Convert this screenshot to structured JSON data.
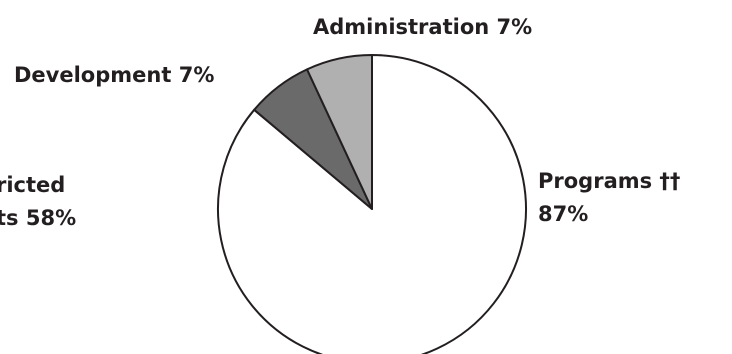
{
  "chart_data": {
    "type": "pie",
    "slices": [
      {
        "label": "Programs ††",
        "value": 87,
        "value_text": "87%",
        "color": "#ffffff"
      },
      {
        "label": "Development",
        "value": 7,
        "value_text": "7%",
        "color": "#6a6a6a"
      },
      {
        "label": "Administration",
        "value": 7,
        "value_text": "7%",
        "color": "#b0b0b0"
      }
    ],
    "start": "top",
    "direction": "clockwise",
    "outline_color": "#231f20",
    "partial_label_lines": [
      "ricted",
      "ts 58%"
    ]
  }
}
